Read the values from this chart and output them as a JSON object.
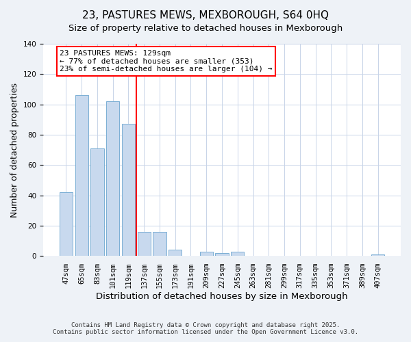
{
  "title": "23, PASTURES MEWS, MEXBOROUGH, S64 0HQ",
  "subtitle": "Size of property relative to detached houses in Mexborough",
  "xlabel": "Distribution of detached houses by size in Mexborough",
  "ylabel": "Number of detached properties",
  "bar_labels": [
    "47sqm",
    "65sqm",
    "83sqm",
    "101sqm",
    "119sqm",
    "137sqm",
    "155sqm",
    "173sqm",
    "191sqm",
    "209sqm",
    "227sqm",
    "245sqm",
    "263sqm",
    "281sqm",
    "299sqm",
    "317sqm",
    "335sqm",
    "353sqm",
    "371sqm",
    "389sqm",
    "407sqm"
  ],
  "bar_values": [
    42,
    106,
    71,
    102,
    87,
    16,
    16,
    4,
    0,
    3,
    2,
    3,
    0,
    0,
    0,
    0,
    0,
    0,
    0,
    0,
    1
  ],
  "bar_color": "#c8d9ee",
  "bar_edge_color": "#7bafd4",
  "vline_color": "red",
  "vline_x_index": 4.5,
  "ylim": [
    0,
    140
  ],
  "yticks": [
    0,
    20,
    40,
    60,
    80,
    100,
    120,
    140
  ],
  "annotation_line1": "23 PASTURES MEWS: 129sqm",
  "annotation_line2": "← 77% of detached houses are smaller (353)",
  "annotation_line3": "23% of semi-detached houses are larger (104) →",
  "annotation_box_color": "white",
  "annotation_box_edge": "red",
  "footnote1": "Contains HM Land Registry data © Crown copyright and database right 2025.",
  "footnote2": "Contains public sector information licensed under the Open Government Licence v3.0.",
  "background_color": "#eef2f7",
  "plot_background_color": "white",
  "title_fontsize": 11,
  "tick_fontsize": 7.5,
  "xlabel_fontsize": 9.5,
  "ylabel_fontsize": 9,
  "annotation_fontsize": 8,
  "footnote_fontsize": 6.5,
  "grid_color": "#c8d4e8"
}
